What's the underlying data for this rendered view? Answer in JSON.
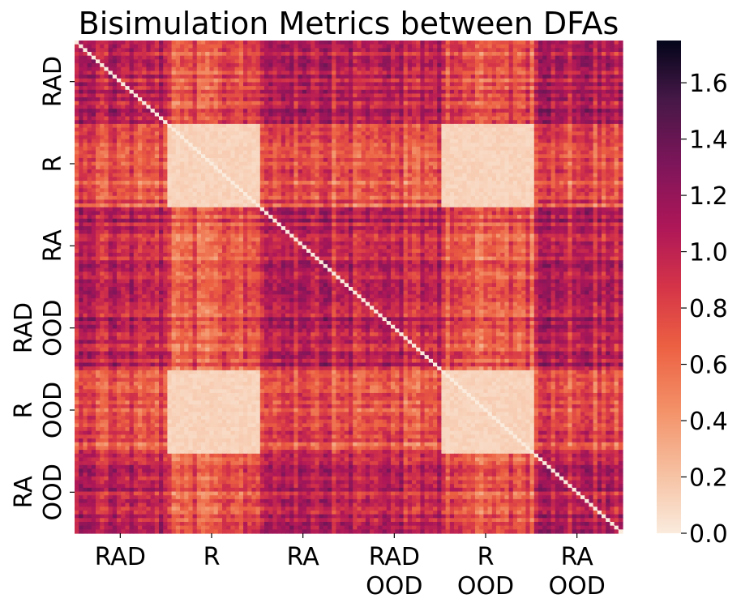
{
  "chart_data": {
    "type": "heatmap",
    "title": "Bisimulation Metrics between DFAs",
    "xlabel": "",
    "ylabel": "",
    "groups": [
      {
        "label": [
          "RAD"
        ]
      },
      {
        "label": [
          "R"
        ]
      },
      {
        "label": [
          "RA"
        ]
      },
      {
        "label": [
          "RAD",
          "OOD"
        ]
      },
      {
        "label": [
          "R",
          "OOD"
        ]
      },
      {
        "label": [
          "RA",
          "OOD"
        ]
      }
    ],
    "block_means": [
      [
        1.0,
        0.72,
        1.0,
        1.0,
        0.72,
        1.0
      ],
      [
        0.72,
        0.08,
        0.72,
        0.72,
        0.08,
        0.72
      ],
      [
        1.0,
        0.72,
        1.0,
        1.0,
        0.72,
        1.0
      ],
      [
        1.0,
        0.72,
        1.0,
        1.0,
        0.72,
        1.0
      ],
      [
        0.72,
        0.08,
        0.72,
        0.72,
        0.08,
        0.72
      ],
      [
        1.0,
        0.72,
        1.0,
        1.0,
        0.72,
        1.0
      ]
    ],
    "diagonal_value": 0.0,
    "colorbar": {
      "min": 0.0,
      "max": 1.75,
      "ticks": [
        "0.0",
        "0.2",
        "0.4",
        "0.6",
        "0.8",
        "1.0",
        "1.2",
        "1.4",
        "1.6"
      ],
      "colormap": "rocket_r"
    }
  }
}
